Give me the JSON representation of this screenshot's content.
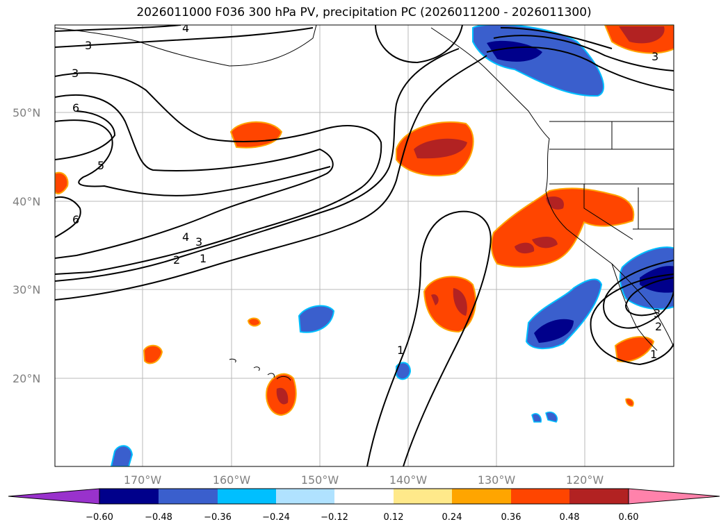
{
  "title": "2026011000 F036 300 hPa PV, precipitation PC (2026011200 - 2026011300)",
  "lat_labels": [
    "50°N",
    "40°N",
    "30°N",
    "20°N"
  ],
  "lon_labels": [
    "170°W",
    "160°W",
    "150°W",
    "140°W",
    "130°W",
    "120°W"
  ],
  "contour_labels": [
    "4",
    "3",
    "3",
    "6",
    "5",
    "6",
    "4",
    "3",
    "2",
    "1",
    "1",
    "3",
    "3",
    "2",
    "1"
  ],
  "colorbar": {
    "ticks": [
      "−0.60",
      "−0.48",
      "−0.36",
      "−0.24",
      "−0.12",
      "0.12",
      "0.24",
      "0.36",
      "0.48",
      "0.60"
    ],
    "colors": [
      "#9932cc",
      "#00008b",
      "#3a5fcd",
      "#00bfff",
      "#b0e2ff",
      "#ffffff",
      "#ffe98a",
      "#ffa500",
      "#ff4500",
      "#b22222",
      "#ff82ab"
    ]
  },
  "colors": {
    "blue_dark": "#00008b",
    "blue_mid": "#3a5fcd",
    "blue_cyan": "#00bfff",
    "orange_red": "#ff4500",
    "dark_red": "#b22222",
    "yellow": "#ffe98a",
    "orange": "#ffa500"
  }
}
